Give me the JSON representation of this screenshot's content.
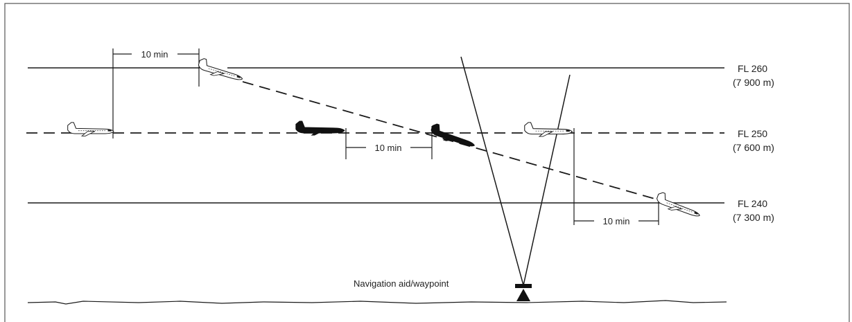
{
  "flight_levels": [
    {
      "name": "FL 260",
      "altitude": "(7 900 m)"
    },
    {
      "name": "FL 250",
      "altitude": "(7 600 m)"
    },
    {
      "name": "FL 240",
      "altitude": "(7 300 m)"
    }
  ],
  "intervals": [
    {
      "label": "10 min"
    },
    {
      "label": "10 min"
    },
    {
      "label": "10 min"
    }
  ],
  "navaid": {
    "label": "Navigation aid/waypoint"
  },
  "colors": {
    "ink": "#1a1a1a",
    "background": "#ffffff",
    "border": "#555555"
  }
}
